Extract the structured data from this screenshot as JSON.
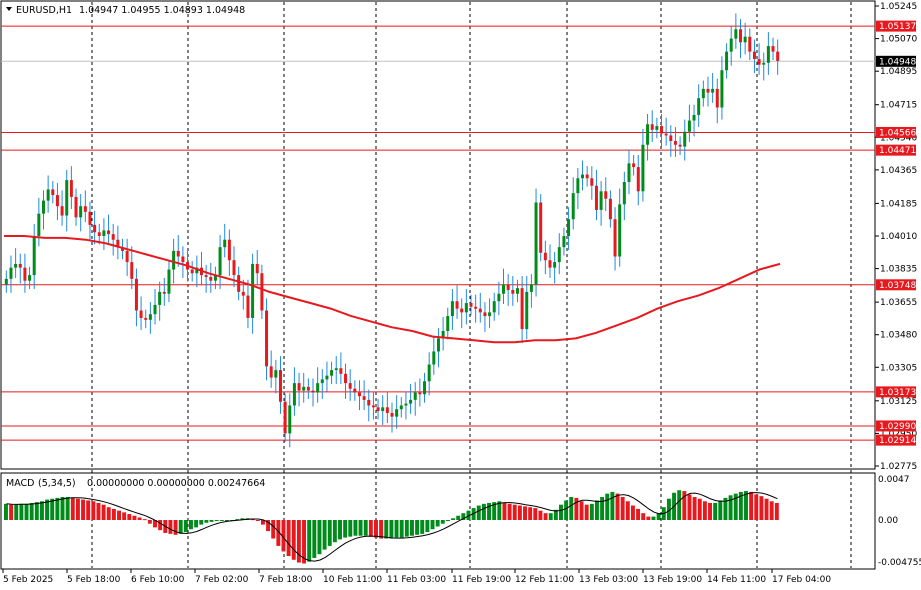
{
  "header": {
    "symbol_label": "EURUSD,H1",
    "ohlc": "1.04947 1.04955 1.04893 1.04948"
  },
  "macd": {
    "label": "MACD",
    "params_label": "(5,34,5)",
    "values": "0.00000000 0.00000000 0.00247664",
    "axis": [
      "0.0047",
      "0.00",
      "-0.004755"
    ]
  },
  "price_axis": [
    "1.05245",
    "1.05070",
    "1.04895",
    "1.04715",
    "1.04540",
    "1.04365",
    "1.04185",
    "1.04010",
    "1.03835",
    "1.03655",
    "1.03480",
    "1.03305",
    "1.03125",
    "1.02950",
    "1.02775"
  ],
  "level_lines": [
    "1.05137",
    "1.04566",
    "1.04471",
    "1.03748",
    "1.03173",
    "1.02990",
    "1.02914"
  ],
  "current_price": "1.04948",
  "time_axis": [
    "5 Feb 2025",
    "5 Feb 18:00",
    "6 Feb 10:00",
    "7 Feb 02:00",
    "7 Feb 18:00",
    "10 Feb 11:00",
    "11 Feb 03:00",
    "11 Feb 19:00",
    "12 Feb 11:00",
    "13 Feb 03:00",
    "13 Feb 19:00",
    "14 Feb 11:00",
    "17 Feb 04:00"
  ],
  "colors": {
    "bull": "#008c1a",
    "bear": "#e6191e",
    "wick": "#2188e3",
    "ma": "#e6191e",
    "level": "#e6191e",
    "grid": "#000000",
    "signal": "#000000"
  },
  "chart_data": {
    "type": "candlestick",
    "symbol": "EURUSD",
    "timeframe": "H1",
    "ylim": [
      1.02775,
      1.05245
    ],
    "price_series": [
      1.0378,
      1.0384,
      1.0386,
      1.0384,
      1.0377,
      1.038,
      1.0401,
      1.0413,
      1.042,
      1.0426,
      1.0423,
      1.0417,
      1.0412,
      1.0431,
      1.0422,
      1.0411,
      1.0417,
      1.0414,
      1.0407,
      1.0403,
      1.0401,
      1.0404,
      1.0402,
      1.0399,
      1.0395,
      1.0393,
      1.0387,
      1.0378,
      1.0361,
      1.0357,
      1.0356,
      1.0359,
      1.0364,
      1.0371,
      1.037,
      1.0383,
      1.0393,
      1.039,
      1.0387,
      1.0383,
      1.0381,
      1.0384,
      1.038,
      1.0379,
      1.0377,
      1.038,
      1.0395,
      1.0399,
      1.0388,
      1.038,
      1.0371,
      1.0369,
      1.0357,
      1.0386,
      1.0381,
      1.0361,
      1.0331,
      1.0325,
      1.0329,
      1.0312,
      1.0295,
      1.031,
      1.0322,
      1.0318,
      1.032,
      1.0318,
      1.0317,
      1.0322,
      1.0324,
      1.0326,
      1.0329,
      1.033,
      1.0327,
      1.0322,
      1.0319,
      1.0317,
      1.0315,
      1.0313,
      1.031,
      1.0309,
      1.0307,
      1.0309,
      1.0306,
      1.0304,
      1.0308,
      1.031,
      1.0311,
      1.0313,
      1.0317,
      1.0316,
      1.0323,
      1.0332,
      1.0339,
      1.0346,
      1.035,
      1.0358,
      1.0366,
      1.0362,
      1.036,
      1.0365,
      1.0363,
      1.0362,
      1.036,
      1.0358,
      1.036,
      1.0366,
      1.037,
      1.0375,
      1.0372,
      1.037,
      1.0373,
      1.0351,
      1.0371,
      1.0375,
      1.0419,
      1.0392,
      1.0388,
      1.0384,
      1.0387,
      1.0395,
      1.0401,
      1.041,
      1.0424,
      1.0432,
      1.0434,
      1.0432,
      1.0428,
      1.0415,
      1.0425,
      1.0421,
      1.041,
      1.039,
      1.0418,
      1.043,
      1.044,
      1.0438,
      1.0425,
      1.045,
      1.0461,
      1.0458,
      1.046,
      1.0456,
      1.0455,
      1.0452,
      1.045,
      1.0449,
      1.0457,
      1.0463,
      1.0466,
      1.0475,
      1.048,
      1.0478,
      1.048,
      1.047,
      1.049,
      1.05,
      1.0507,
      1.0512,
      1.0505,
      1.0508,
      1.05,
      1.0496,
      1.0493,
      1.0494,
      1.0503,
      1.05,
      1.0495
    ],
    "ma_series": [
      1.0401,
      1.0401,
      1.04,
      1.04,
      1.0399,
      1.0397,
      1.0394,
      1.0391,
      1.0388,
      1.0385,
      1.0381,
      1.0378,
      1.0375,
      1.0371,
      1.0368,
      1.0365,
      1.0362,
      1.0358,
      1.0355,
      1.0352,
      1.035,
      1.0347,
      1.0346,
      1.0345,
      1.0344,
      1.0344,
      1.0345,
      1.0345,
      1.0346,
      1.0349,
      1.0353,
      1.0357,
      1.0362,
      1.0366,
      1.0369,
      1.0373,
      1.0378,
      1.0383,
      1.0386
    ],
    "macd_histogram": [
      0.0019,
      0.0018,
      0.0018,
      0.0019,
      0.0019,
      0.002,
      0.0021,
      0.0022,
      0.0024,
      0.0025,
      0.0026,
      0.0027,
      0.0027,
      0.0026,
      0.0025,
      0.0024,
      0.0023,
      0.0022,
      0.002,
      0.0018,
      0.0015,
      0.0013,
      0.0011,
      0.0009,
      0.0007,
      0.0005,
      0.0003,
      0.0001,
      -0.0004,
      -0.0008,
      -0.0011,
      -0.0014,
      -0.0015,
      -0.0016,
      -0.0015,
      -0.0013,
      -0.001,
      -0.0008,
      -0.0005,
      -0.0003,
      -0.0002,
      -0.0001,
      -0.0001,
      0.0,
      0.0,
      0.0001,
      0.0002,
      0.0002,
      0.0001,
      0.0,
      -0.0005,
      -0.0012,
      -0.002,
      -0.0028,
      -0.0034,
      -0.0039,
      -0.0043,
      -0.0046,
      -0.0047,
      -0.0045,
      -0.0041,
      -0.0037,
      -0.0032,
      -0.0028,
      -0.0024,
      -0.0021,
      -0.0019,
      -0.0018,
      -0.0017,
      -0.0017,
      -0.0017,
      -0.0018,
      -0.0019,
      -0.002,
      -0.002,
      -0.002,
      -0.0019,
      -0.0019,
      -0.0018,
      -0.0017,
      -0.0016,
      -0.0015,
      -0.0013,
      -0.001,
      -0.0007,
      -0.0004,
      -0.0001,
      0.0002,
      0.0005,
      0.0008,
      0.0011,
      0.0014,
      0.0017,
      0.0019,
      0.002,
      0.0021,
      0.0022,
      0.002,
      0.0019,
      0.0018,
      0.0017,
      0.0016,
      0.0015,
      0.0014,
      0.0011,
      0.0008,
      0.0008,
      0.0012,
      0.0018,
      0.0023,
      0.0027,
      0.0026,
      0.0022,
      0.0018,
      0.0019,
      0.0023,
      0.0027,
      0.0031,
      0.0033,
      0.0031,
      0.0027,
      0.0022,
      0.0017,
      0.0013,
      0.0008,
      0.0004,
      0.0004,
      0.0008,
      0.0015,
      0.0025,
      0.0032,
      0.0035,
      0.0034,
      0.003,
      0.0027,
      0.0025,
      0.0022,
      0.002,
      0.002,
      0.0023,
      0.0026,
      0.0029,
      0.0031,
      0.0033,
      0.0034,
      0.0033,
      0.003,
      0.0028,
      0.0025,
      0.0022,
      0.002
    ]
  }
}
